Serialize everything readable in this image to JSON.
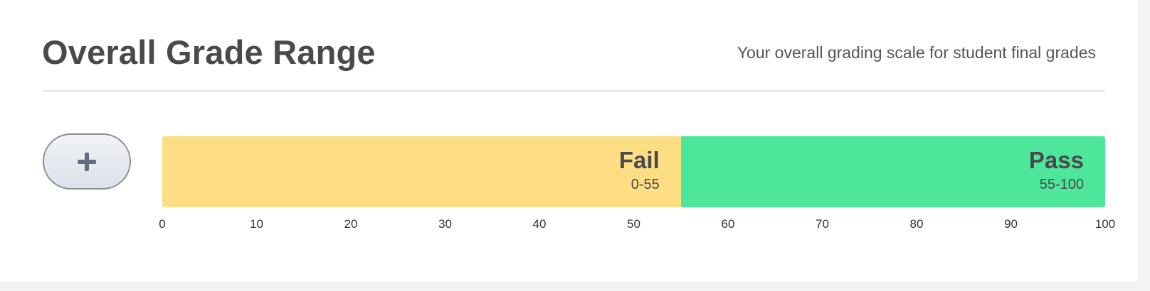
{
  "header": {
    "title": "Overall Grade Range",
    "subtitle": "Your overall grading scale for student final grades"
  },
  "add_button": {
    "icon": "plus-icon"
  },
  "scale": {
    "min": 0,
    "max": 100,
    "ticks": [
      "0",
      "10",
      "20",
      "30",
      "40",
      "50",
      "60",
      "70",
      "80",
      "90",
      "100"
    ]
  },
  "segments": [
    {
      "name": "Fail",
      "range_label": "0-55",
      "start": 0,
      "end": 55,
      "color": "#fdde85"
    },
    {
      "name": "Pass",
      "range_label": "55-100",
      "start": 55,
      "end": 100,
      "color": "#4de69b"
    }
  ]
}
